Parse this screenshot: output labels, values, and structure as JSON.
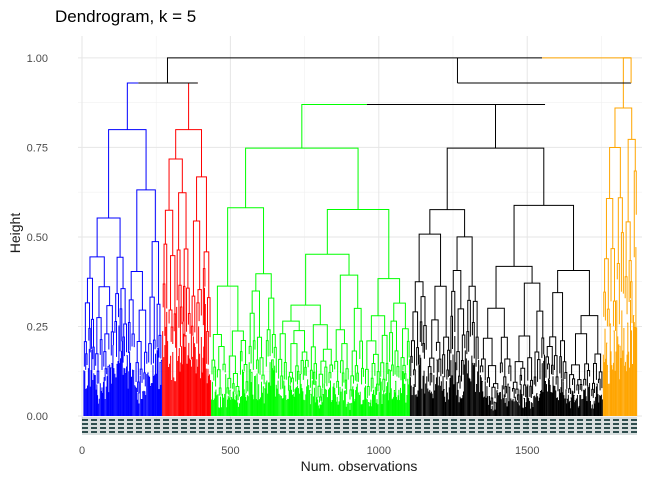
{
  "chart_data": {
    "type": "dendrogram",
    "title": "Dendrogram, k = 5",
    "xlabel": "Num. observations",
    "ylabel": "Height",
    "xlim": [
      0,
      1880
    ],
    "ylim": [
      0,
      1.05
    ],
    "x_ticks": [
      0,
      500,
      1000,
      1500
    ],
    "x_tick_labels": [
      "0",
      "500",
      "1000",
      "1500"
    ],
    "y_ticks": [
      0,
      0.25,
      0.5,
      0.75,
      1.0
    ],
    "y_tick_labels": [
      "0.00",
      "0.25",
      "0.50",
      "0.75",
      "1.00"
    ],
    "grid": true,
    "legend": "none",
    "n_observations": 1870,
    "leaf_label_color": "#2f4f4f",
    "root": {
      "height": 1.0,
      "left_x": 288,
      "right_x": 1550
    },
    "upper_links": [
      {
        "height": 0.93,
        "left_x": 190,
        "right_x": 390,
        "color": "#000000"
      },
      {
        "height": 0.93,
        "left_x": 1265,
        "right_x": 1850,
        "color": "#000000"
      },
      {
        "height": 0.87,
        "left_x": 960,
        "right_x": 1560,
        "color": "#000000"
      }
    ],
    "clusters": [
      {
        "name": "1",
        "color": "#0000ff",
        "x_start": 5,
        "x_end": 270,
        "height": 0.93,
        "top_x": 190
      },
      {
        "name": "2",
        "color": "#ff0000",
        "x_start": 270,
        "x_end": 435,
        "height": 0.93,
        "top_x": 390
      },
      {
        "name": "3",
        "color": "#00ff00",
        "x_start": 435,
        "x_end": 1105,
        "height": 0.87,
        "top_x": 960
      },
      {
        "name": "4",
        "color": "#000000",
        "x_start": 1105,
        "x_end": 1755,
        "height": 0.87,
        "top_x": 1560
      },
      {
        "name": "5",
        "color": "#ffa500",
        "x_start": 1755,
        "x_end": 1870,
        "height": 1.0,
        "top_x": 1850
      }
    ]
  }
}
